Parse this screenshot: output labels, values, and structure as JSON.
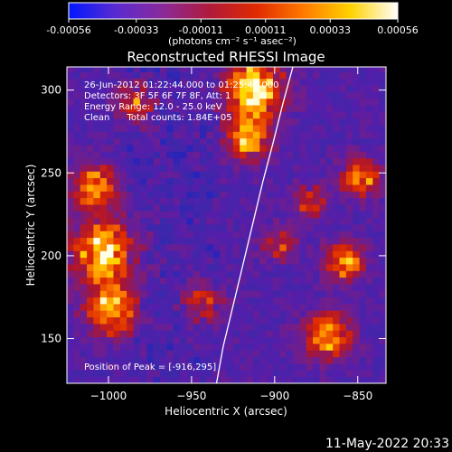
{
  "colorbar": {
    "tick_labels": [
      "-0.00056",
      "-0.00033",
      "-0.00011",
      "0.00011",
      "0.00033",
      "0.00056"
    ],
    "unit_label": "(photons cm⁻² s⁻¹ asec⁻²)",
    "range": [
      -0.00056,
      0.00056
    ],
    "colors": [
      "#0018ff",
      "#5a2bd0",
      "#8a2a9a",
      "#b01a3a",
      "#e02a00",
      "#ff7a00",
      "#ffd200",
      "#ffffff"
    ]
  },
  "chart_data": {
    "type": "heatmap",
    "title": "Reconstructed RHESSI Image",
    "xlabel": "Heliocentric X (arcsec)",
    "ylabel": "Heliocentric Y (arcsec)",
    "xlim": [
      -1025,
      -833
    ],
    "ylim": [
      123,
      314
    ],
    "x_ticks": [
      -1000,
      -950,
      -900,
      -850
    ],
    "x_tick_labels": [
      "−1000",
      "−950",
      "−900",
      "−850"
    ],
    "y_ticks": [
      150,
      200,
      250,
      300
    ],
    "y_tick_labels": [
      "150",
      "200",
      "250",
      "300"
    ],
    "grid": false,
    "limb_x": [
      -935,
      -931,
      -925,
      -919,
      -913,
      -907,
      -901,
      -895,
      -889
    ],
    "limb_y": [
      123,
      145,
      170,
      195,
      220,
      245,
      268,
      292,
      314
    ],
    "peak": [
      -916,
      295
    ],
    "hot_regions": [
      {
        "x": -915,
        "y": 300,
        "intensity": 1.0,
        "radius": 18
      },
      {
        "x": -918,
        "y": 270,
        "intensity": 0.85,
        "radius": 14
      },
      {
        "x": -1005,
        "y": 200,
        "intensity": 0.9,
        "radius": 20
      },
      {
        "x": -1010,
        "y": 240,
        "intensity": 0.75,
        "radius": 14
      },
      {
        "x": -1000,
        "y": 165,
        "intensity": 0.8,
        "radius": 16
      },
      {
        "x": -985,
        "y": 290,
        "intensity": 0.6,
        "radius": 12
      },
      {
        "x": -945,
        "y": 170,
        "intensity": 0.6,
        "radius": 12
      },
      {
        "x": -870,
        "y": 150,
        "intensity": 0.85,
        "radius": 14
      },
      {
        "x": -860,
        "y": 195,
        "intensity": 0.8,
        "radius": 12
      },
      {
        "x": -850,
        "y": 245,
        "intensity": 0.75,
        "radius": 12
      },
      {
        "x": -880,
        "y": 230,
        "intensity": 0.6,
        "radius": 10
      },
      {
        "x": -900,
        "y": 205,
        "intensity": 0.55,
        "radius": 10
      }
    ],
    "annotations": [
      "26-Jun-2012 01:22:44.000 to 01:25:44.000",
      "Detectors: 3F 5F 6F 7F 8F, Att: 1",
      "Energy Range: 12.0 - 25.0 keV",
      "Clean      Total counts: 1.84E+05"
    ],
    "peak_label": "Position of Peak = [-916,295]"
  },
  "timestamp": "11-May-2022 20:33"
}
